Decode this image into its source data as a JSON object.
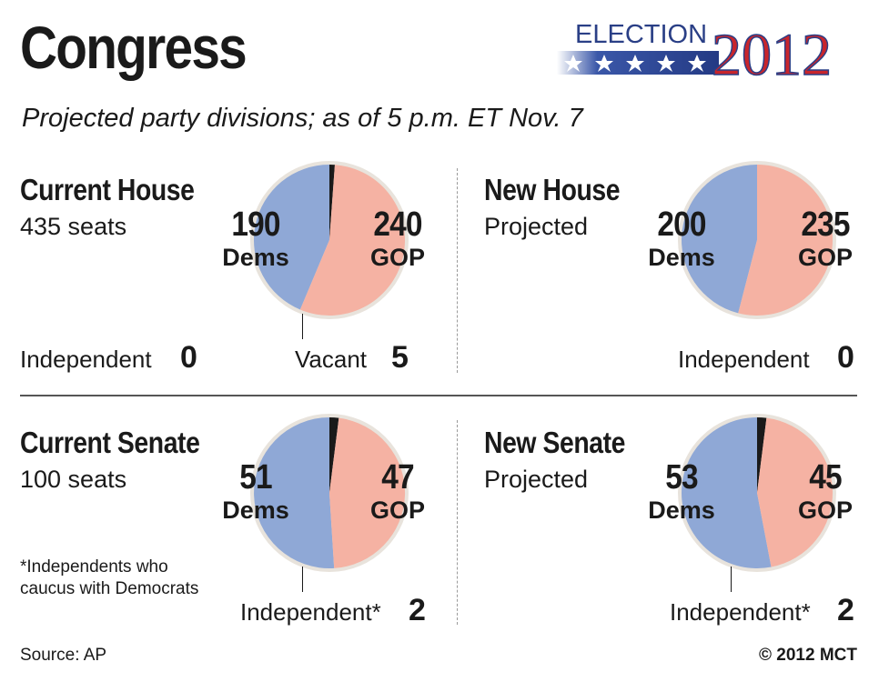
{
  "title": "Congress",
  "subtitle": "Projected party divisions; as of 5 p.m. ET Nov. 7",
  "logo": {
    "word": "ELECTION",
    "year": "2012",
    "blue": "#2a3f86",
    "red": "#c8252c"
  },
  "colors": {
    "dems": "#8fa8d6",
    "gop": "#f5b2a3",
    "other": "#1a1a1a",
    "ring": "#e8e3dc"
  },
  "panels": {
    "current_house": {
      "title": "Current House",
      "subtitle": "435 seats",
      "dems_value": "190",
      "dems_label": "Dems",
      "gop_value": "240",
      "gop_label": "GOP",
      "ind_label": "Independent",
      "ind_value": "0",
      "vacant_label": "Vacant",
      "vacant_value": "5"
    },
    "new_house": {
      "title": "New House",
      "subtitle": "Projected",
      "dems_value": "200",
      "dems_label": "Dems",
      "gop_value": "235",
      "gop_label": "GOP",
      "ind_label": "Independent",
      "ind_value": "0"
    },
    "current_senate": {
      "title": "Current Senate",
      "subtitle": "100 seats",
      "dems_value": "51",
      "dems_label": "Dems",
      "gop_value": "47",
      "gop_label": "GOP",
      "ind_label": "Independent*",
      "ind_value": "2",
      "footnote": "*Independents who caucus with Democrats"
    },
    "new_senate": {
      "title": "New Senate",
      "subtitle": "Projected",
      "dems_value": "53",
      "dems_label": "Dems",
      "gop_value": "45",
      "gop_label": "GOP",
      "ind_label": "Independent*",
      "ind_value": "2"
    }
  },
  "source": "Source: AP",
  "credit": "© 2012 MCT",
  "chart_data": [
    {
      "type": "pie",
      "title": "Current House",
      "categories": [
        "Dems",
        "GOP",
        "Vacant",
        "Independent"
      ],
      "values": [
        190,
        240,
        5,
        0
      ]
    },
    {
      "type": "pie",
      "title": "New House",
      "categories": [
        "Dems",
        "GOP",
        "Independent"
      ],
      "values": [
        200,
        235,
        0
      ]
    },
    {
      "type": "pie",
      "title": "Current Senate",
      "categories": [
        "Dems",
        "GOP",
        "Independent*"
      ],
      "values": [
        51,
        47,
        2
      ]
    },
    {
      "type": "pie",
      "title": "New Senate",
      "categories": [
        "Dems",
        "GOP",
        "Independent*"
      ],
      "values": [
        53,
        45,
        2
      ]
    }
  ]
}
